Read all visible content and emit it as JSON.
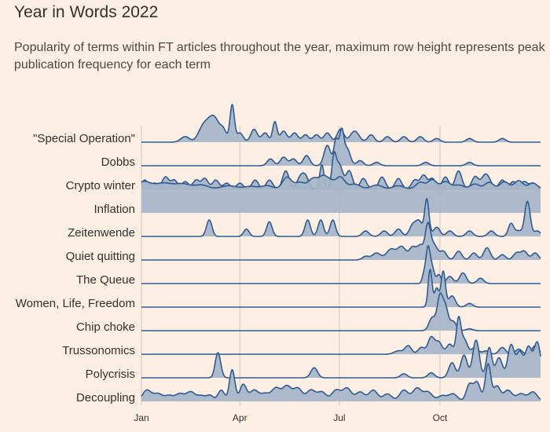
{
  "title": "Year in Words 2022",
  "subtitle": "Popularity of terms within FT articles throughout the year, maximum row height represents peak publication frequency for each term",
  "colors": {
    "background": "#fdefe4",
    "fill": "#a6b5c9",
    "line": "#2f5b93",
    "grid": "#cfc7c0",
    "text": "#33302e"
  },
  "chart_data": {
    "type": "ridgeline",
    "x_domain": [
      0,
      365
    ],
    "x_ticks": [
      {
        "label": "Jan",
        "day": 0
      },
      {
        "label": "Apr",
        "day": 90
      },
      {
        "label": "Jul",
        "day": 181
      },
      {
        "label": "Oct",
        "day": 273
      }
    ],
    "series": [
      {
        "name": "\"Special Operation\"",
        "peaks": [
          [
            40,
            4,
            0.15
          ],
          [
            55,
            4,
            0.25
          ],
          [
            62,
            5,
            0.5
          ],
          [
            68,
            4,
            0.4
          ],
          [
            75,
            3,
            0.3
          ],
          [
            83,
            2,
            1.0
          ],
          [
            90,
            3,
            0.25
          ],
          [
            103,
            3,
            0.35
          ],
          [
            113,
            3,
            0.25
          ],
          [
            122,
            2,
            0.55
          ],
          [
            130,
            3,
            0.3
          ],
          [
            140,
            3,
            0.25
          ],
          [
            150,
            3,
            0.2
          ],
          [
            160,
            3,
            0.2
          ],
          [
            170,
            3,
            0.25
          ],
          [
            182,
            3,
            0.35
          ],
          [
            195,
            4,
            0.3
          ],
          [
            210,
            3,
            0.2
          ],
          [
            225,
            3,
            0.15
          ],
          [
            240,
            3,
            0.15
          ],
          [
            255,
            3,
            0.15
          ],
          [
            270,
            3,
            0.1
          ],
          [
            300,
            3,
            0.1
          ],
          [
            330,
            3,
            0.1
          ]
        ]
      },
      {
        "name": "Dobbs",
        "peaks": [
          [
            118,
            3,
            0.2
          ],
          [
            130,
            3,
            0.25
          ],
          [
            139,
            3,
            0.2
          ],
          [
            151,
            3,
            0.3
          ],
          [
            170,
            3,
            0.6
          ],
          [
            178,
            2,
            0.75
          ],
          [
            183,
            2,
            0.95
          ],
          [
            188,
            3,
            0.5
          ],
          [
            200,
            3,
            0.15
          ],
          [
            215,
            3,
            0.1
          ],
          [
            260,
            3,
            0.1
          ],
          [
            300,
            3,
            0.1
          ]
        ]
      },
      {
        "name": "Crypto winter",
        "peaks": [
          [
            3,
            3,
            0.3
          ],
          [
            12,
            3,
            0.2
          ],
          [
            22,
            3,
            0.4
          ],
          [
            30,
            3,
            0.3
          ],
          [
            40,
            3,
            0.25
          ],
          [
            50,
            3,
            0.3
          ],
          [
            58,
            3,
            0.35
          ],
          [
            68,
            3,
            0.3
          ],
          [
            78,
            3,
            0.2
          ],
          [
            90,
            3,
            0.2
          ],
          [
            104,
            3,
            0.3
          ],
          [
            117,
            3,
            0.3
          ],
          [
            132,
            3,
            0.6
          ],
          [
            145,
            3,
            0.35
          ],
          [
            150,
            3,
            0.4
          ],
          [
            165,
            2,
            0.8
          ],
          [
            176,
            2,
            1.0
          ],
          [
            181,
            3,
            0.8
          ],
          [
            190,
            3,
            0.6
          ],
          [
            203,
            3,
            0.35
          ],
          [
            220,
            3,
            0.4
          ],
          [
            235,
            3,
            0.35
          ],
          [
            250,
            3,
            0.3
          ],
          [
            258,
            3,
            0.45
          ],
          [
            266,
            3,
            0.35
          ],
          [
            278,
            3,
            0.4
          ],
          [
            290,
            3,
            0.6
          ],
          [
            305,
            3,
            0.4
          ],
          [
            315,
            4,
            0.5
          ],
          [
            330,
            3,
            0.3
          ],
          [
            340,
            3,
            0.25
          ],
          [
            350,
            3,
            0.25
          ],
          [
            358,
            3,
            0.2
          ]
        ]
      },
      {
        "name": "Inflation",
        "base": 0.72,
        "peaks": [
          [
            2,
            6,
            0.22
          ],
          [
            20,
            8,
            0.18
          ],
          [
            38,
            7,
            0.15
          ],
          [
            55,
            6,
            0.12
          ],
          [
            80,
            7,
            0.1
          ],
          [
            100,
            6,
            0.08
          ],
          [
            115,
            5,
            0.1
          ],
          [
            133,
            4,
            0.35
          ],
          [
            145,
            5,
            0.2
          ],
          [
            157,
            4,
            0.3
          ],
          [
            166,
            4,
            0.35
          ],
          [
            173,
            4,
            0.2
          ],
          [
            182,
            4,
            0.35
          ],
          [
            195,
            5,
            0.15
          ],
          [
            215,
            5,
            0.12
          ],
          [
            235,
            5,
            0.1
          ],
          [
            255,
            4,
            0.2
          ],
          [
            266,
            4,
            0.28
          ],
          [
            278,
            4,
            0.22
          ],
          [
            290,
            5,
            0.12
          ],
          [
            305,
            4,
            0.15
          ],
          [
            318,
            4,
            0.2
          ],
          [
            332,
            4,
            0.22
          ],
          [
            345,
            4,
            0.25
          ],
          [
            358,
            4,
            0.18
          ]
        ]
      },
      {
        "name": "Zeitenwende",
        "peaks": [
          [
            62,
            2.5,
            0.45
          ],
          [
            96,
            2.5,
            0.2
          ],
          [
            117,
            2.5,
            0.4
          ],
          [
            152,
            2.5,
            0.45
          ],
          [
            164,
            2.5,
            0.45
          ],
          [
            175,
            2.5,
            0.45
          ],
          [
            205,
            3,
            0.15
          ],
          [
            222,
            3,
            0.15
          ],
          [
            235,
            3,
            0.2
          ],
          [
            248,
            3,
            0.3
          ],
          [
            254,
            3,
            0.4
          ],
          [
            261,
            2,
            1.0
          ],
          [
            270,
            3,
            0.25
          ],
          [
            282,
            3,
            0.15
          ],
          [
            300,
            3,
            0.15
          ],
          [
            320,
            3,
            0.15
          ],
          [
            338,
            2.5,
            0.35
          ],
          [
            345,
            3,
            0.15
          ],
          [
            353,
            2.5,
            0.95
          ],
          [
            362,
            3,
            0.15
          ]
        ]
      },
      {
        "name": "Quiet quitting",
        "peaks": [
          [
            205,
            3,
            0.1
          ],
          [
            215,
            4,
            0.2
          ],
          [
            228,
            4,
            0.3
          ],
          [
            238,
            4,
            0.38
          ],
          [
            248,
            3,
            0.35
          ],
          [
            255,
            3,
            0.4
          ],
          [
            262,
            2.5,
            1.0
          ],
          [
            268,
            3,
            0.4
          ],
          [
            276,
            3,
            0.25
          ],
          [
            290,
            3,
            0.25
          ],
          [
            304,
            3,
            0.2
          ],
          [
            316,
            3,
            0.35
          ],
          [
            330,
            3,
            0.15
          ],
          [
            343,
            3,
            0.2
          ],
          [
            350,
            3,
            0.25
          ],
          [
            360,
            3,
            0.2
          ]
        ]
      },
      {
        "name": "The Queue",
        "peaks": [
          [
            258,
            1.5,
            0.2
          ],
          [
            262,
            2,
            1.0
          ],
          [
            266,
            2,
            0.4
          ],
          [
            272,
            2,
            0.25
          ],
          [
            282,
            3,
            0.2
          ],
          [
            294,
            3,
            0.3
          ],
          [
            310,
            3,
            0.15
          ]
        ]
      },
      {
        "name": "Women, Life, Freedom",
        "peaks": [
          [
            264,
            1.8,
            1.0
          ],
          [
            270,
            2,
            0.5
          ],
          [
            276,
            2,
            0.95
          ],
          [
            284,
            3,
            0.3
          ],
          [
            300,
            3,
            0.1
          ]
        ]
      },
      {
        "name": "Chip choke",
        "peaks": [
          [
            266,
            3,
            0.35
          ],
          [
            273,
            2.5,
            0.9
          ],
          [
            278,
            2.5,
            0.6
          ],
          [
            285,
            3,
            0.25
          ],
          [
            300,
            3,
            0.05
          ]
        ]
      },
      {
        "name": "Trussonomics",
        "peaks": [
          [
            235,
            4,
            0.1
          ],
          [
            244,
            3,
            0.25
          ],
          [
            256,
            3,
            0.2
          ],
          [
            265,
            3,
            0.5
          ],
          [
            272,
            3,
            0.35
          ],
          [
            282,
            3,
            0.3
          ],
          [
            290,
            2,
            1.0
          ],
          [
            295,
            3,
            0.45
          ],
          [
            305,
            3,
            0.2
          ],
          [
            315,
            3,
            0.1
          ],
          [
            330,
            3,
            0.2
          ],
          [
            345,
            3,
            0.15
          ],
          [
            360,
            3,
            0.25
          ]
        ]
      },
      {
        "name": "Polycrisis",
        "peaks": [
          [
            70,
            2.5,
            0.5
          ],
          [
            158,
            3,
            0.2
          ],
          [
            240,
            3,
            0.08
          ],
          [
            265,
            3,
            0.1
          ],
          [
            284,
            3,
            0.3
          ],
          [
            295,
            3,
            0.45
          ],
          [
            306,
            3,
            0.75
          ],
          [
            318,
            2.5,
            0.6
          ],
          [
            327,
            3,
            0.4
          ],
          [
            338,
            3,
            0.65
          ],
          [
            346,
            3,
            0.5
          ],
          [
            354,
            3,
            0.6
          ],
          [
            362,
            3,
            0.7
          ]
        ]
      },
      {
        "name": "Decoupling",
        "peaks": [
          [
            5,
            4,
            0.3
          ],
          [
            15,
            4,
            0.2
          ],
          [
            25,
            4,
            0.15
          ],
          [
            35,
            4,
            0.2
          ],
          [
            45,
            4,
            0.25
          ],
          [
            55,
            4,
            0.15
          ],
          [
            63,
            3,
            0.15
          ],
          [
            73,
            3,
            0.3
          ],
          [
            83,
            2.5,
            0.85
          ],
          [
            93,
            3,
            0.45
          ],
          [
            103,
            4,
            0.3
          ],
          [
            113,
            4,
            0.2
          ],
          [
            123,
            4,
            0.35
          ],
          [
            133,
            4,
            0.4
          ],
          [
            143,
            4,
            0.35
          ],
          [
            155,
            4,
            0.3
          ],
          [
            165,
            4,
            0.25
          ],
          [
            178,
            4,
            0.3
          ],
          [
            188,
            4,
            0.35
          ],
          [
            200,
            4,
            0.25
          ],
          [
            212,
            4,
            0.3
          ],
          [
            225,
            4,
            0.2
          ],
          [
            240,
            4,
            0.3
          ],
          [
            252,
            4,
            0.35
          ],
          [
            262,
            4,
            0.25
          ],
          [
            275,
            4,
            0.15
          ],
          [
            285,
            4,
            0.2
          ],
          [
            300,
            3,
            0.45
          ],
          [
            307,
            3,
            0.5
          ],
          [
            317,
            2.5,
            1.0
          ],
          [
            325,
            3,
            0.4
          ],
          [
            335,
            4,
            0.3
          ],
          [
            347,
            4,
            0.2
          ],
          [
            358,
            4,
            0.25
          ]
        ]
      }
    ]
  }
}
